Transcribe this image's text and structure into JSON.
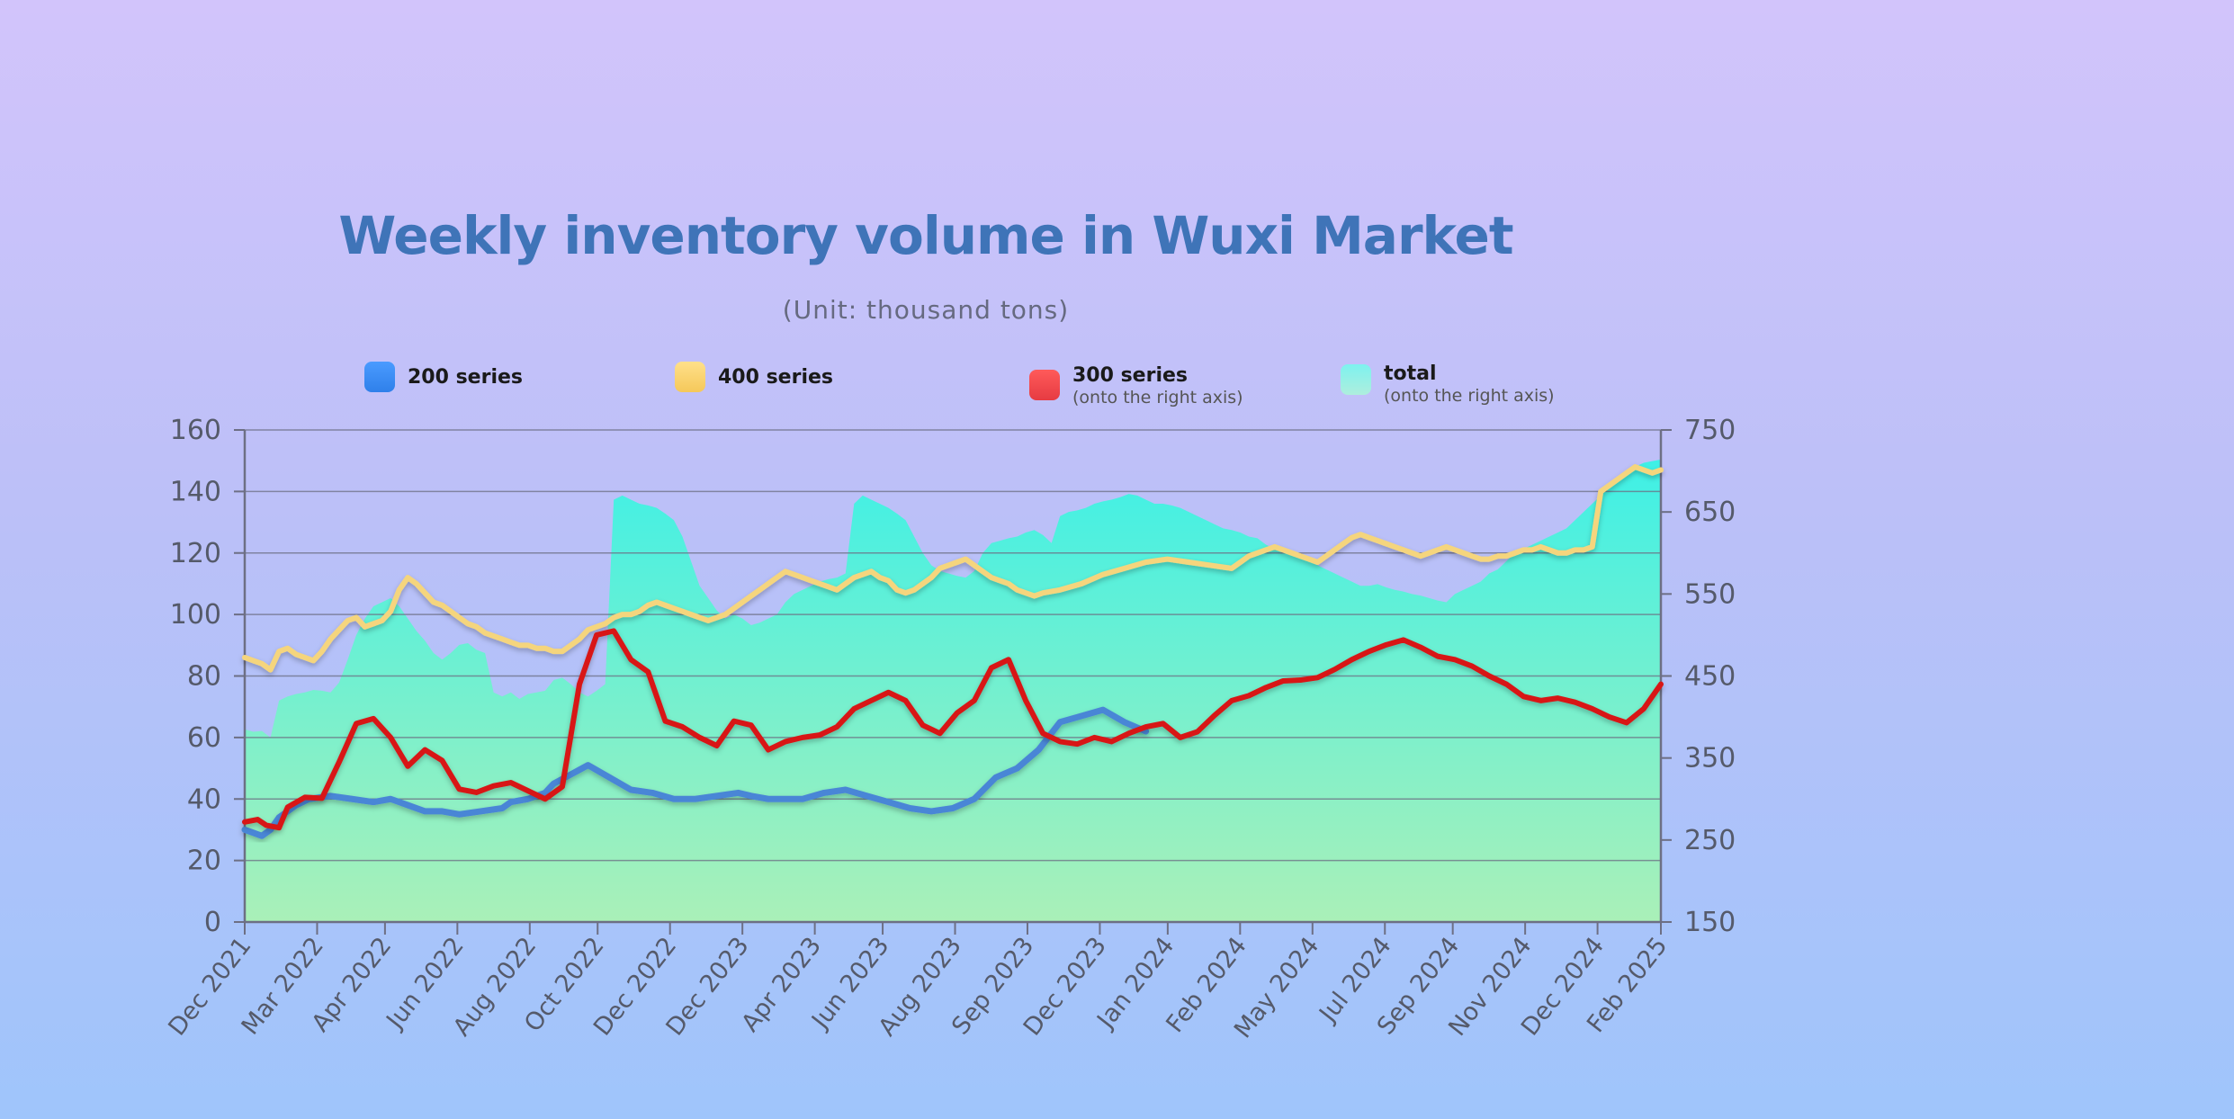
{
  "chart_data": {
    "type": "line",
    "title": "Weekly inventory volume in Wuxi Market",
    "subtitle": "(Unit: thousand tons)",
    "left_axis": {
      "ylim": [
        0,
        160
      ],
      "ticks": [
        "0",
        "20",
        "40",
        "60",
        "80",
        "100",
        "120",
        "140",
        "160"
      ]
    },
    "right_axis": {
      "ylim": [
        150,
        750
      ],
      "ticks": [
        "150",
        "250",
        "350",
        "450",
        "550",
        "650",
        "750"
      ]
    },
    "x_tick_labels": [
      "Dec 2021",
      "Mar 2022",
      "Apr 2022",
      "Jun 2022",
      "Aug 2022",
      "Oct 2022",
      "Dec 2022",
      "Dec 2023",
      "Apr 2023",
      "Jun 2023",
      "Aug 2023",
      "Sep 2023",
      "Dec 2023",
      "Jan 2024",
      "Feb 2024",
      "May 2024",
      "Jul 2024",
      "Sep 2024",
      "Nov 2024",
      "Dec 2024",
      "Feb 2025"
    ],
    "legend": [
      {
        "name": "200 series",
        "note": "",
        "color": "#3b8ff5"
      },
      {
        "name": "400 series",
        "note": "",
        "color": "#fbd46e"
      },
      {
        "name": "300 series",
        "note": "(onto the right axis)",
        "color": "#f0474d"
      },
      {
        "name": "total",
        "note": "(onto the right axis)",
        "color": "#6ceee0"
      }
    ],
    "series": [
      {
        "name": "200 series",
        "axis": "left",
        "color": "#4a86d6",
        "x": [
          0,
          2,
          4,
          6,
          8,
          10,
          12,
          15,
          20,
          25,
          30,
          34,
          38,
          42,
          46,
          50,
          55,
          60,
          62,
          66,
          70,
          72,
          76,
          80,
          85,
          90,
          95,
          100,
          105,
          110,
          115,
          118,
          122,
          126,
          130,
          135,
          140,
          145,
          150,
          155,
          160,
          165,
          170,
          175,
          180,
          185,
          190,
          195,
          200,
          205,
          210
        ],
        "values": [
          30,
          29,
          28,
          30,
          34,
          36,
          38,
          40,
          41,
          40,
          39,
          40,
          38,
          36,
          36,
          35,
          36,
          37,
          39,
          40,
          42,
          45,
          48,
          51,
          47,
          43,
          42,
          40,
          40,
          41,
          42,
          41,
          40,
          40,
          40,
          42,
          43,
          41,
          39,
          37,
          36,
          37,
          40,
          47,
          50,
          56,
          65,
          67,
          69,
          65,
          62
        ]
      },
      {
        "name": "400 series",
        "axis": "left",
        "color": "#f5d57d",
        "x": [
          0,
          2,
          4,
          6,
          8,
          10,
          12,
          14,
          16,
          18,
          20,
          22,
          24,
          26,
          28,
          30,
          32,
          34,
          36,
          38,
          40,
          42,
          44,
          46,
          48,
          50,
          52,
          54,
          56,
          58,
          60,
          62,
          64,
          66,
          68,
          70,
          72,
          74,
          76,
          78,
          80,
          82,
          84,
          86,
          88,
          90,
          92,
          94,
          96,
          98,
          100,
          102,
          104,
          106,
          108,
          110,
          112,
          114,
          116,
          118,
          120,
          122,
          124,
          126,
          128,
          130,
          132,
          134,
          136,
          138,
          140,
          142,
          144,
          146,
          148,
          150,
          152,
          154,
          156,
          158,
          160,
          162,
          164,
          166,
          168,
          170,
          172,
          174,
          176,
          178,
          180,
          182,
          184,
          186,
          190,
          195,
          200,
          205,
          210,
          215,
          220,
          225,
          230,
          232,
          234,
          236,
          238,
          240,
          242,
          244,
          246,
          248,
          250,
          252,
          254,
          256,
          258,
          260,
          262,
          264,
          266,
          268,
          270,
          272,
          274,
          276,
          278,
          280,
          282,
          284,
          286,
          288,
          290,
          292,
          294,
          296,
          298,
          300,
          302,
          304,
          306,
          308,
          310,
          312,
          314,
          316,
          318,
          320,
          322,
          324,
          326,
          328,
          330
        ],
        "values": [
          86,
          85,
          84,
          82,
          88,
          89,
          87,
          86,
          85,
          88,
          92,
          95,
          98,
          99,
          96,
          97,
          98,
          101,
          108,
          112,
          110,
          107,
          104,
          103,
          101,
          99,
          97,
          96,
          94,
          93,
          92,
          91,
          90,
          90,
          89,
          89,
          88,
          88,
          90,
          92,
          95,
          96,
          97,
          99,
          100,
          100,
          101,
          103,
          104,
          103,
          102,
          101,
          100,
          99,
          98,
          99,
          100,
          102,
          104,
          106,
          108,
          110,
          112,
          114,
          113,
          112,
          111,
          110,
          109,
          108,
          110,
          112,
          113,
          114,
          112,
          111,
          108,
          107,
          108,
          110,
          112,
          115,
          116,
          117,
          118,
          116,
          114,
          112,
          111,
          110,
          108,
          107,
          106,
          107,
          108,
          110,
          113,
          115,
          117,
          118,
          117,
          116,
          115,
          117,
          119,
          120,
          121,
          122,
          121,
          120,
          119,
          118,
          117,
          119,
          121,
          123,
          125,
          126,
          125,
          124,
          123,
          122,
          121,
          120,
          119,
          120,
          121,
          122,
          121,
          120,
          119,
          118,
          118,
          119,
          119,
          120,
          121,
          121,
          122,
          121,
          120,
          120,
          121,
          121,
          122,
          140,
          142,
          144,
          146,
          148,
          147,
          146,
          147
        ]
      }
    ],
    "series_right": [
      {
        "name": "300 series",
        "axis": "right",
        "color": "#d81717",
        "x": [
          0,
          3,
          5,
          8,
          10,
          14,
          18,
          22,
          26,
          30,
          34,
          38,
          42,
          46,
          50,
          54,
          58,
          62,
          66,
          70,
          74,
          78,
          82,
          86,
          90,
          94,
          98,
          102,
          106,
          110,
          114,
          118,
          122,
          126,
          130,
          134,
          138,
          142,
          146,
          150,
          154,
          158,
          162,
          166,
          170,
          174,
          178,
          182,
          186,
          190,
          194,
          198,
          202,
          206,
          210,
          214,
          218,
          222,
          226,
          230,
          234,
          238,
          242,
          246,
          250,
          254,
          258,
          262,
          266,
          270,
          274,
          278,
          282,
          286,
          290,
          294,
          298,
          302,
          306,
          310,
          314,
          318,
          322,
          326,
          330
        ],
        "values": [
          272,
          275,
          268,
          265,
          290,
          302,
          301,
          345,
          392,
          398,
          375,
          340,
          360,
          347,
          312,
          308,
          316,
          320,
          310,
          300,
          315,
          440,
          500,
          505,
          470,
          455,
          395,
          388,
          375,
          365,
          395,
          390,
          360,
          370,
          375,
          378,
          388,
          410,
          420,
          430,
          420,
          390,
          380,
          405,
          420,
          460,
          470,
          420,
          380,
          370,
          367,
          375,
          370,
          380,
          388,
          392,
          375,
          382,
          402,
          420,
          426,
          436,
          444,
          445,
          448,
          458,
          470,
          480,
          488,
          494,
          485,
          474,
          470,
          462,
          450,
          440,
          425,
          420,
          423,
          418,
          410,
          400,
          393,
          410,
          440
        ]
      }
    ],
    "total": {
      "name": "total",
      "axis": "right",
      "color": "#5ef0e2",
      "x": [
        0,
        2,
        4,
        6,
        8,
        10,
        12,
        14,
        16,
        18,
        20,
        22,
        24,
        26,
        28,
        30,
        32,
        34,
        36,
        38,
        40,
        42,
        44,
        46,
        48,
        50,
        52,
        54,
        56,
        58,
        60,
        62,
        64,
        66,
        68,
        70,
        72,
        74,
        76,
        78,
        80,
        82,
        84,
        86,
        88,
        90,
        92,
        94,
        96,
        98,
        100,
        102,
        104,
        106,
        108,
        110,
        112,
        114,
        116,
        118,
        120,
        122,
        124,
        126,
        128,
        130,
        132,
        134,
        136,
        138,
        140,
        142,
        144,
        146,
        148,
        150,
        152,
        154,
        156,
        158,
        160,
        162,
        164,
        166,
        168,
        170,
        172,
        174,
        176,
        178,
        180,
        182,
        184,
        186,
        188,
        190,
        192,
        194,
        196,
        198,
        200,
        202,
        204,
        206,
        208,
        210,
        212,
        214,
        216,
        218,
        220,
        222,
        224,
        226,
        228,
        230,
        232,
        234,
        236,
        238,
        240,
        242,
        244,
        246,
        248,
        250,
        252,
        254,
        256,
        258,
        260,
        262,
        264,
        266,
        268,
        270,
        272,
        274,
        276,
        278,
        280,
        282,
        284,
        286,
        288,
        290,
        292,
        294,
        296,
        298,
        300,
        302,
        304,
        306,
        308,
        310,
        312,
        314,
        316,
        318,
        320,
        322,
        324,
        326,
        328,
        330
      ],
      "values": [
        385,
        382,
        383,
        375,
        420,
        425,
        428,
        430,
        433,
        432,
        430,
        442,
        470,
        500,
        520,
        535,
        540,
        545,
        535,
        520,
        505,
        493,
        478,
        470,
        478,
        488,
        490,
        482,
        478,
        430,
        425,
        430,
        422,
        428,
        430,
        432,
        445,
        448,
        440,
        430,
        425,
        432,
        440,
        665,
        670,
        665,
        660,
        658,
        655,
        648,
        640,
        620,
        590,
        560,
        545,
        530,
        520,
        525,
        520,
        512,
        515,
        520,
        525,
        540,
        550,
        555,
        560,
        565,
        568,
        570,
        575,
        660,
        670,
        665,
        660,
        655,
        648,
        640,
        620,
        600,
        585,
        578,
        575,
        572,
        570,
        578,
        600,
        612,
        615,
        618,
        620,
        625,
        628,
        622,
        612,
        645,
        650,
        652,
        655,
        660,
        663,
        665,
        668,
        672,
        670,
        665,
        660,
        660,
        658,
        655,
        650,
        645,
        640,
        635,
        630,
        628,
        625,
        620,
        618,
        610,
        605,
        602,
        600,
        598,
        590,
        585,
        580,
        575,
        570,
        565,
        560,
        560,
        562,
        558,
        555,
        553,
        550,
        548,
        545,
        542,
        540,
        550,
        555,
        560,
        565,
        575,
        580,
        590,
        600,
        605,
        610,
        615,
        620,
        625,
        630,
        640,
        650,
        660,
        670,
        680,
        690,
        700,
        705,
        710,
        712,
        714
      ]
    }
  }
}
